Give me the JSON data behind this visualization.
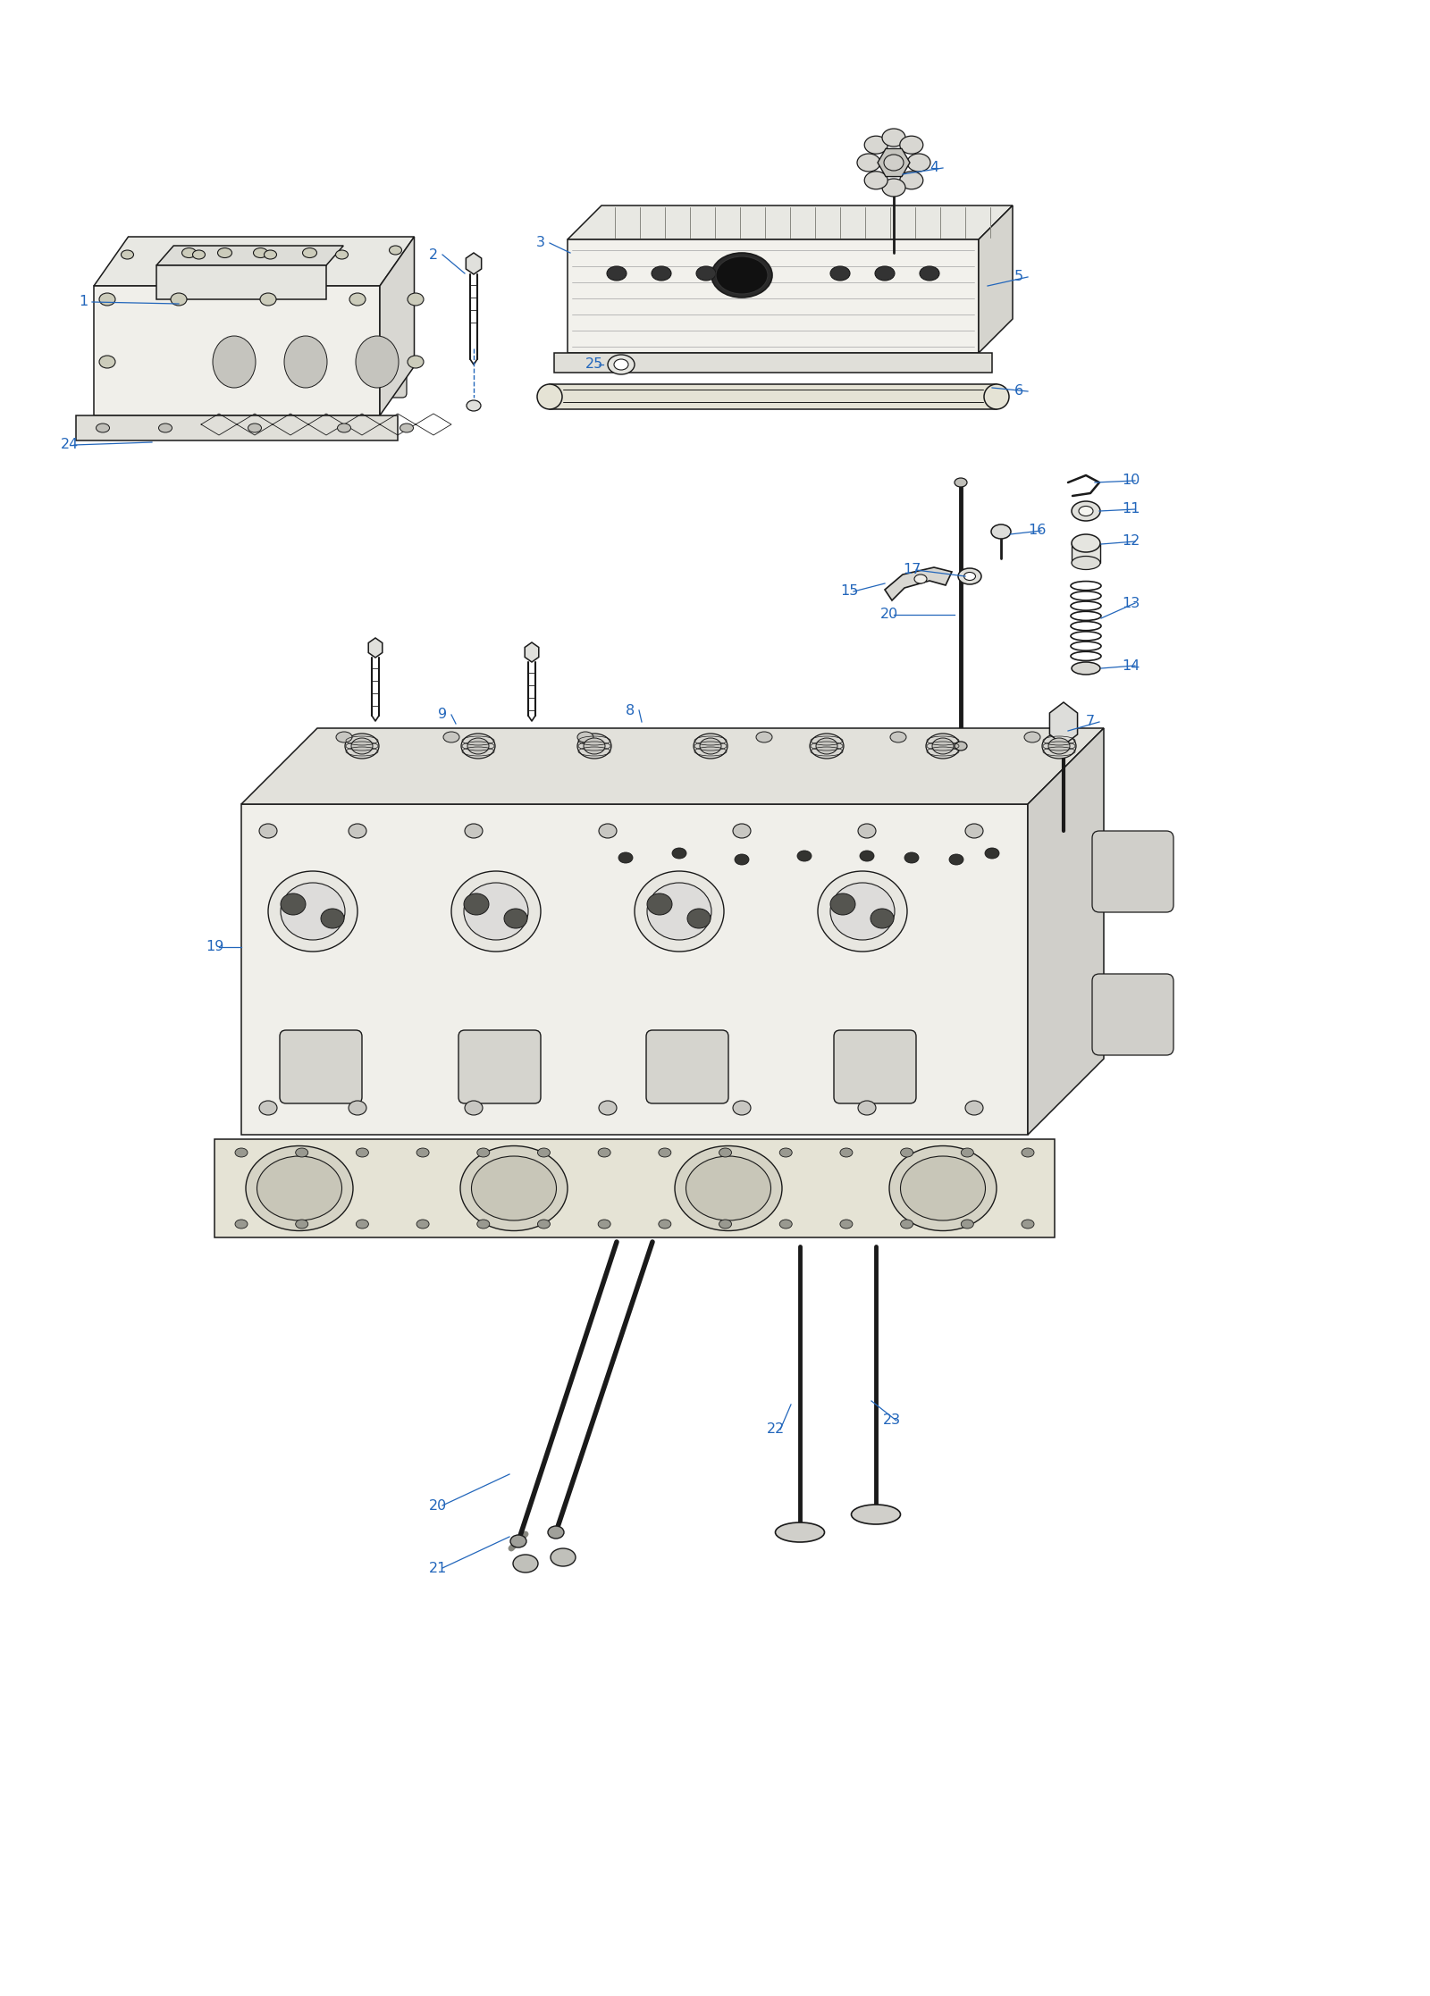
{
  "bg_color": "#ffffff",
  "line_color": "#1a1a1a",
  "label_color": "#2266bb",
  "label_fontsize": 11.5,
  "lw_main": 1.1,
  "lw_thin": 0.7,
  "lw_thick": 1.8
}
